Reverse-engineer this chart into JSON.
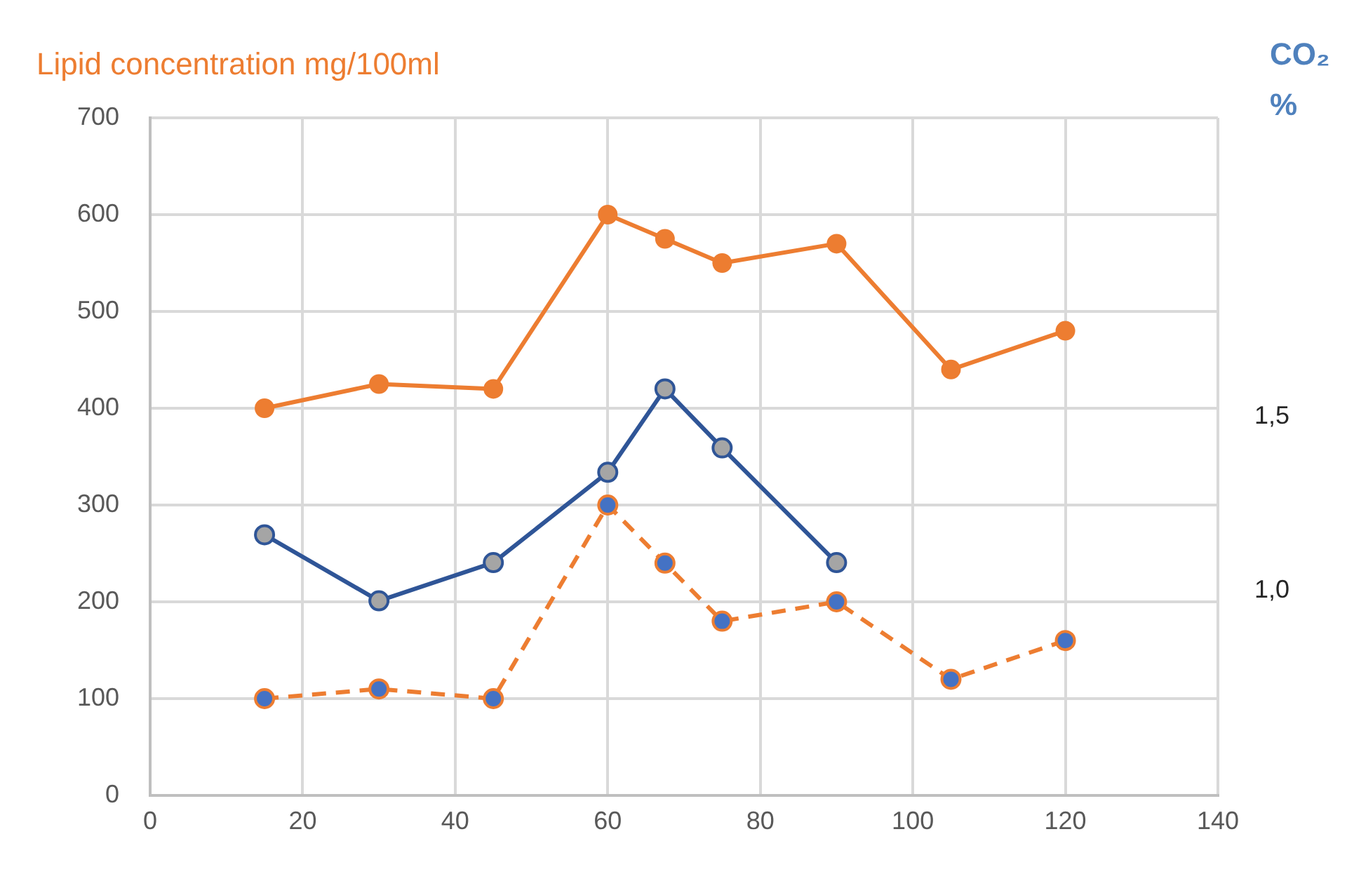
{
  "chart_data": {
    "type": "line",
    "ylabel": "Lipid concentration mg/100ml",
    "y2label": "CO₂ %",
    "xlim": [
      0,
      140
    ],
    "xticks": [
      0,
      20,
      40,
      60,
      80,
      100,
      120,
      140
    ],
    "ylim": [
      0,
      700
    ],
    "yticks": [
      0,
      100,
      200,
      300,
      400,
      500,
      600,
      700
    ],
    "y2lim": [
      0.41,
      2.36
    ],
    "y2ticks": [
      {
        "value": 1.0,
        "label": "1,0"
      },
      {
        "value": 1.5,
        "label": "1,5"
      }
    ],
    "grid": true,
    "legend": false,
    "marker": "circle",
    "series": [
      {
        "color": "#ed7d31",
        "line_style": "solid",
        "x": [
          15,
          30,
          45,
          60,
          67.5,
          75,
          90,
          105,
          120
        ],
        "values": [
          400,
          425,
          420,
          600,
          575,
          550,
          570,
          440,
          480
        ]
      },
      {
        "color": "#ed7d31",
        "line_style": "dashed",
        "x": [
          15,
          30,
          45,
          60,
          67.5,
          75,
          90,
          105,
          120
        ],
        "values": [
          100,
          110,
          100,
          300,
          240,
          180,
          200,
          120,
          160
        ]
      },
      {
        "color": "#2f5597",
        "line_style": "solid",
        "axis": "y2",
        "x": [
          15,
          30,
          45,
          60,
          67.5,
          75,
          90
        ],
        "values": [
          1.16,
          0.97,
          1.08,
          1.34,
          1.58,
          1.41,
          1.08
        ]
      }
    ]
  }
}
